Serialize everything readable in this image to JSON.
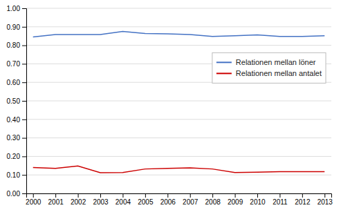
{
  "chart_data": {
    "type": "line",
    "x": [
      2000,
      2001,
      2002,
      2003,
      2004,
      2005,
      2006,
      2007,
      2008,
      2009,
      2010,
      2011,
      2012,
      2013
    ],
    "series": [
      {
        "name": "Relationen mellan löner",
        "color": "#4472C4",
        "values": [
          0.845,
          0.858,
          0.858,
          0.858,
          0.875,
          0.864,
          0.862,
          0.858,
          0.848,
          0.852,
          0.856,
          0.848,
          0.848,
          0.852
        ]
      },
      {
        "name": "Relationen mellan antalet",
        "color": "#CC0000",
        "values": [
          0.14,
          0.135,
          0.148,
          0.112,
          0.113,
          0.132,
          0.135,
          0.138,
          0.132,
          0.113,
          0.115,
          0.118,
          0.118,
          0.118
        ]
      }
    ],
    "xlim": [
      1999.7,
      2013.3
    ],
    "xticks": [
      2000,
      2001,
      2002,
      2003,
      2004,
      2005,
      2006,
      2007,
      2008,
      2009,
      2010,
      2011,
      2012,
      2013
    ],
    "ylim": [
      0.0,
      1.0
    ],
    "yticks": [
      {
        "value": 0.0,
        "label": "0.00"
      },
      {
        "value": 0.1,
        "label": "0.10"
      },
      {
        "value": 0.2,
        "label": "0.20"
      },
      {
        "value": 0.3,
        "label": "0.30"
      },
      {
        "value": 0.4,
        "label": "0.40"
      },
      {
        "value": 0.5,
        "label": "0.50"
      },
      {
        "value": 0.6,
        "label": "0.60"
      },
      {
        "value": 0.7,
        "label": "0.70"
      },
      {
        "value": 0.8,
        "label": "0.80"
      },
      {
        "value": 0.9,
        "label": "0.90"
      },
      {
        "value": 1.0,
        "label": "1.00"
      }
    ],
    "grid": true,
    "legend": "upper right"
  }
}
